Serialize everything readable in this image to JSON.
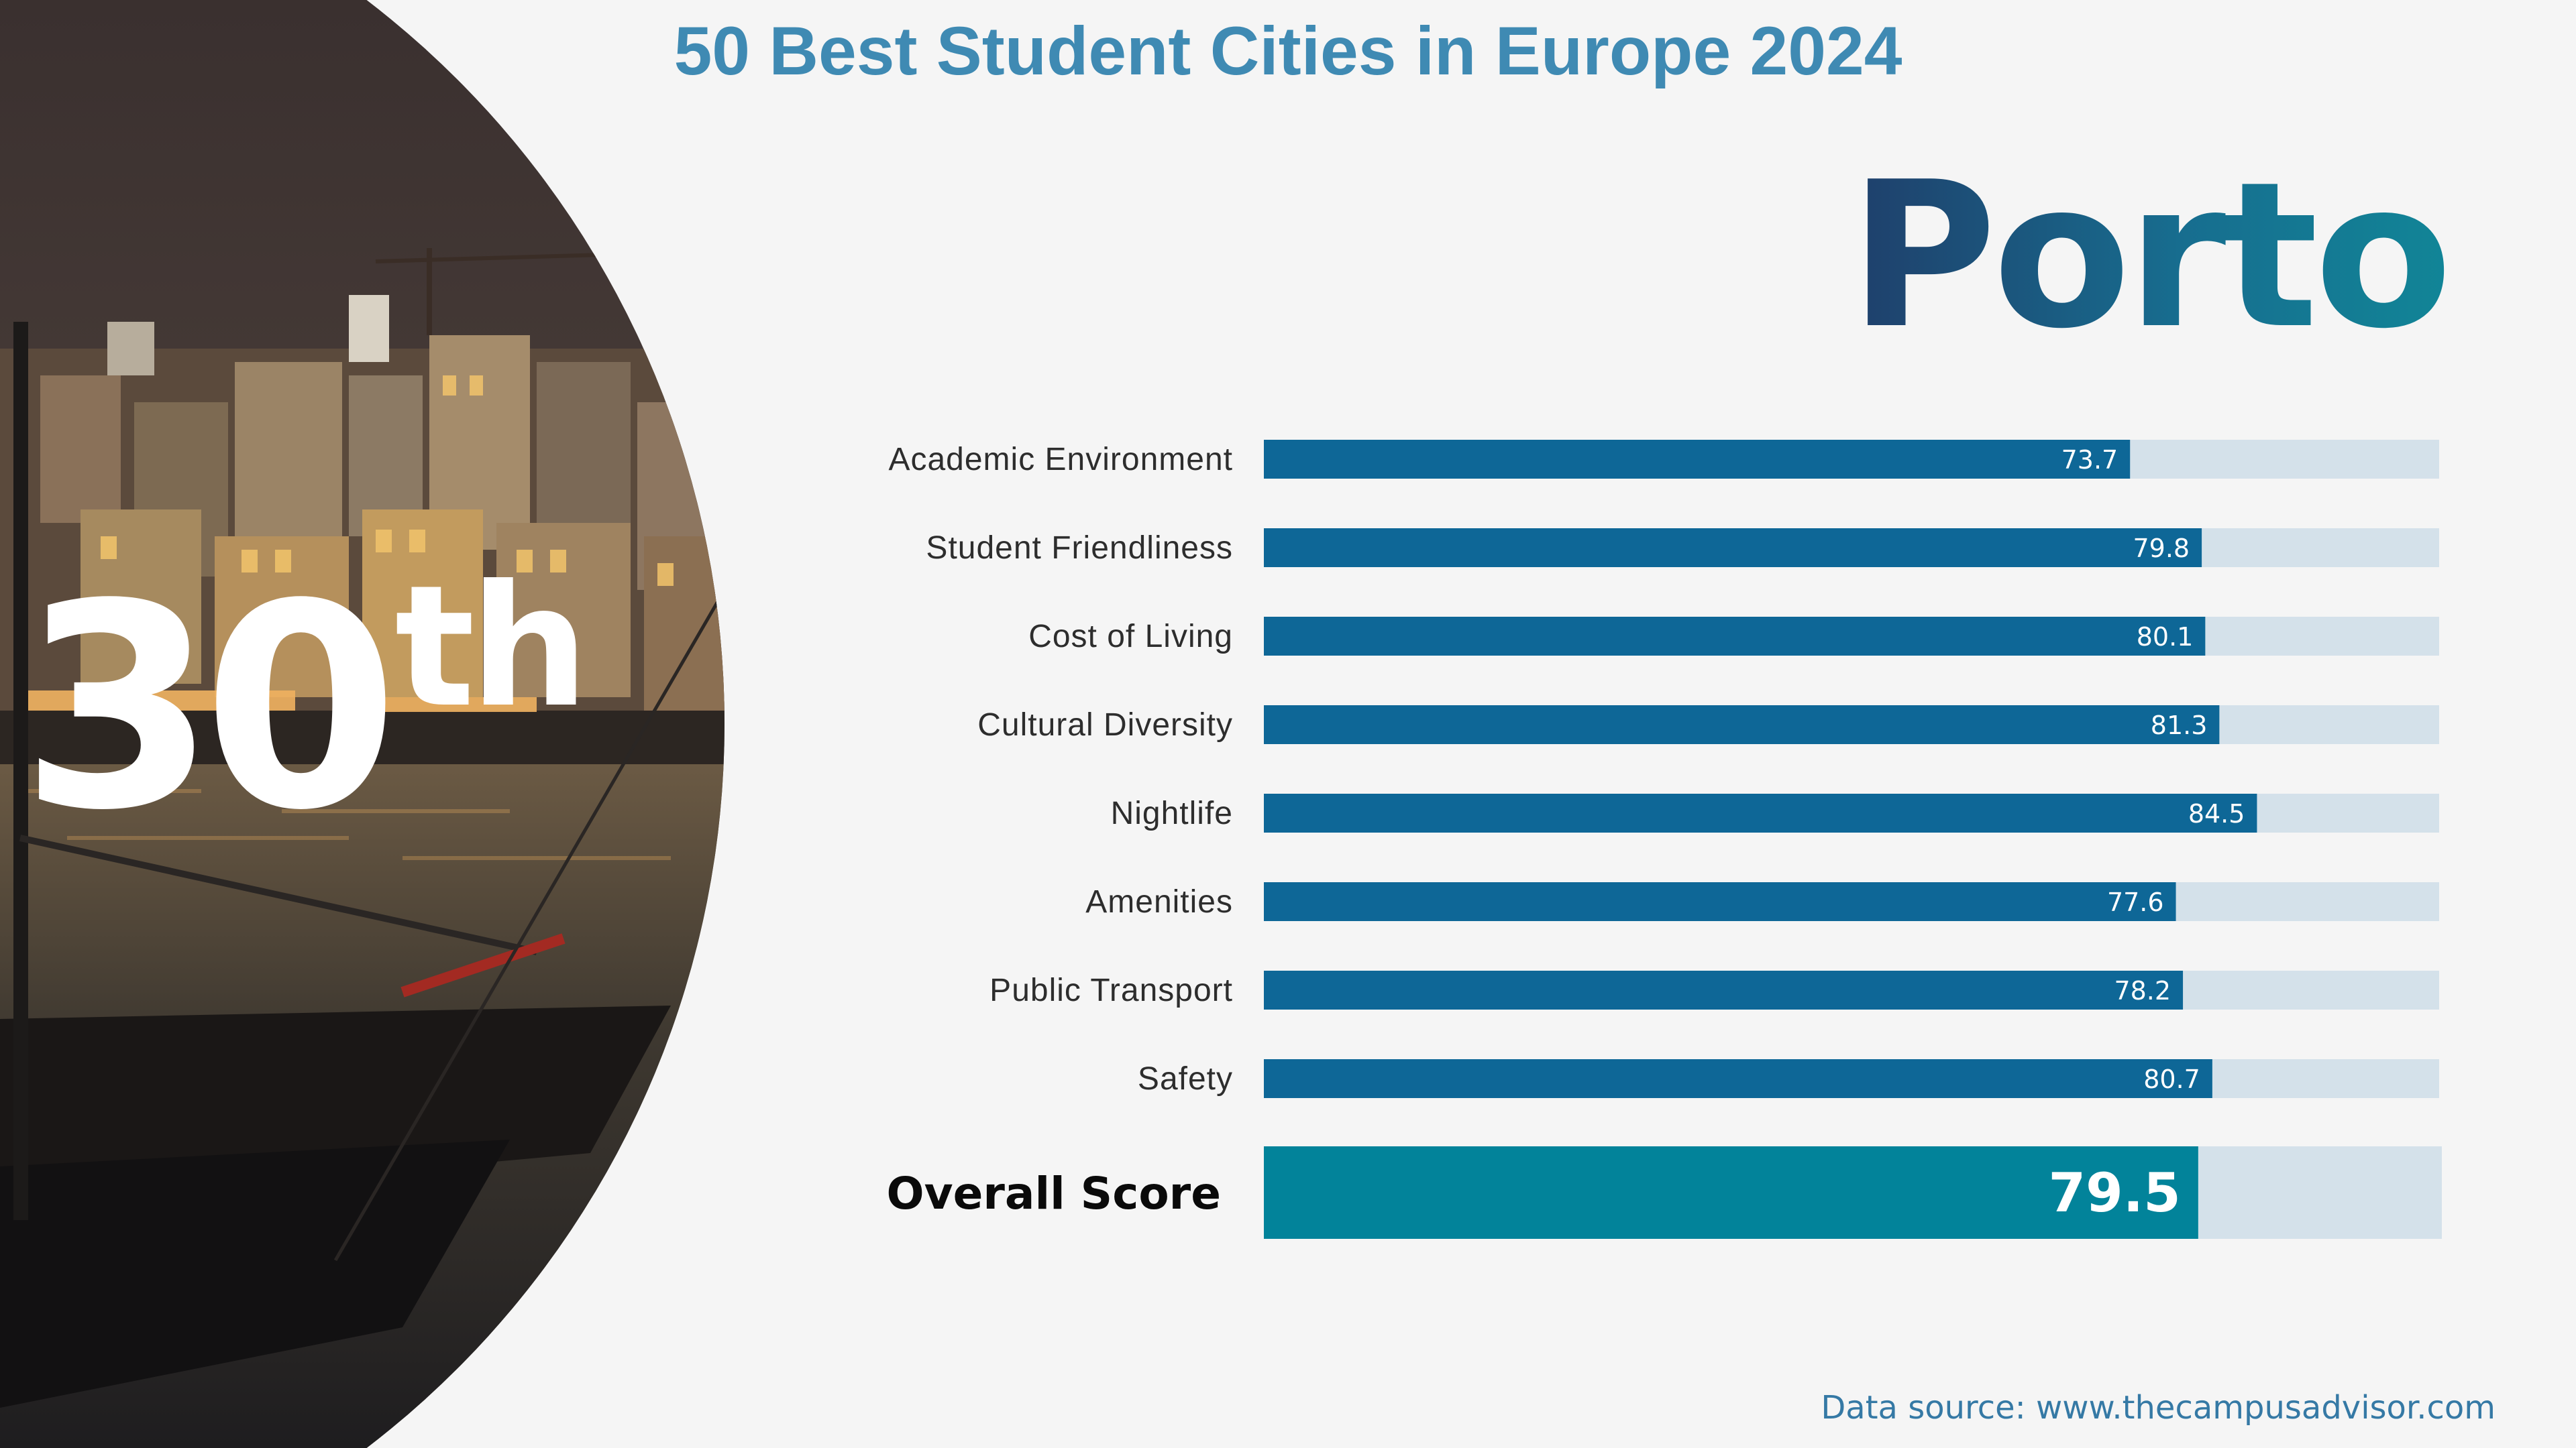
{
  "title": "50 Best Student Cities in Europe 2024",
  "city": "Porto",
  "rank": {
    "number": "30",
    "suffix": "th"
  },
  "source": "Data source: www.thecampusadvisor.com",
  "colors": {
    "bar": "#0e6797",
    "track": "#d4e1ea",
    "overall": "#02839a",
    "title": "#3f8ab3"
  },
  "chart_data": {
    "type": "bar",
    "orientation": "horizontal",
    "categories": [
      "Academic Environment",
      "Student Friendliness",
      "Cost of Living",
      "Cultural Diversity",
      "Nightlife",
      "Amenities",
      "Public Transport",
      "Safety"
    ],
    "values": [
      73.7,
      79.8,
      80.1,
      81.3,
      84.5,
      77.6,
      78.2,
      80.7
    ],
    "xlim": [
      0,
      100
    ],
    "overall": {
      "label": "Overall Score",
      "value": 79.5
    }
  }
}
